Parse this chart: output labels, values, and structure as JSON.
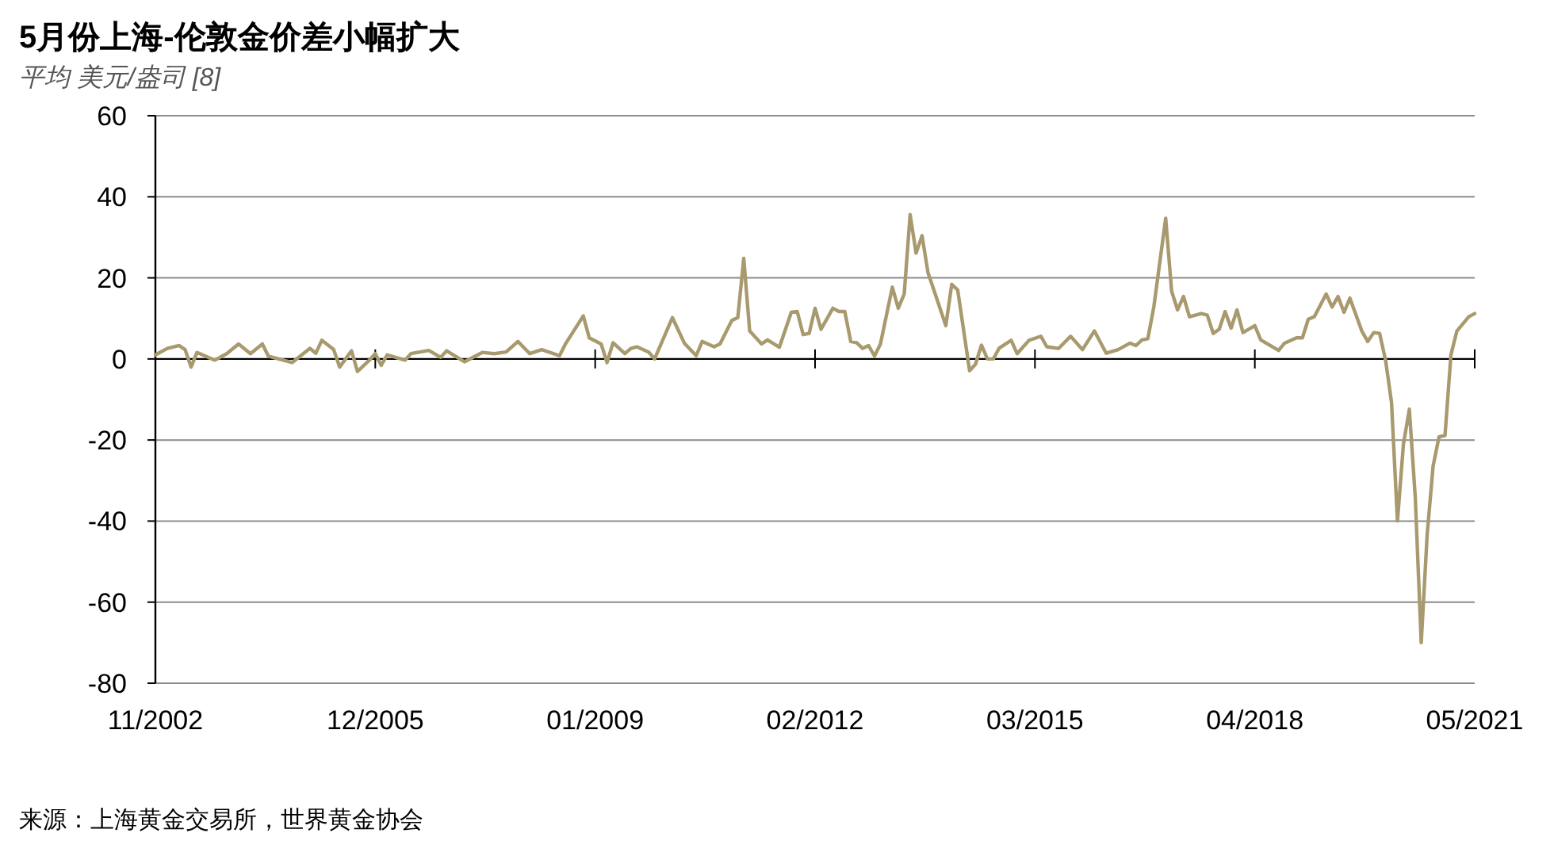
{
  "chart_data": {
    "type": "line",
    "title": "5月份上海-伦敦金价差小幅扩大",
    "subtitle": "平均 美元/盎司 [8]",
    "annotations": [
      "来源：上海黄金交易所，世界黄金协会"
    ],
    "xlim": [
      "2002-11",
      "2021-05"
    ],
    "xticks": [
      {
        "value": "2002-11",
        "label": "11/2002"
      },
      {
        "value": "2005-12",
        "label": "12/2005"
      },
      {
        "value": "2009-01",
        "label": "01/2009"
      },
      {
        "value": "2012-02",
        "label": "02/2012"
      },
      {
        "value": "2015-03",
        "label": "03/2015"
      },
      {
        "value": "2018-04",
        "label": "04/2018"
      },
      {
        "value": "2021-05",
        "label": "05/2021"
      }
    ],
    "ylim": [
      -80,
      60
    ],
    "yticks": [
      -80,
      -60,
      -40,
      -20,
      0,
      20,
      40,
      60
    ],
    "grid": "y",
    "color": "#a89a6e",
    "x": [
      "2002-11",
      "2003-01",
      "2003-03",
      "2003-04",
      "2003-05",
      "2003-06",
      "2003-09",
      "2003-11",
      "2004-01",
      "2004-03",
      "2004-05",
      "2004-06",
      "2004-10",
      "2005-01",
      "2005-02",
      "2005-03",
      "2005-05",
      "2005-06",
      "2005-08",
      "2005-09",
      "2005-11",
      "2005-12",
      "2006-01",
      "2006-02",
      "2006-05",
      "2006-06",
      "2006-09",
      "2006-11",
      "2006-12",
      "2007-03",
      "2007-06",
      "2007-08",
      "2007-10",
      "2007-12",
      "2008-02",
      "2008-04",
      "2008-07",
      "2008-08",
      "2008-11",
      "2008-12",
      "2009-02",
      "2009-03",
      "2009-04",
      "2009-06",
      "2009-07",
      "2009-08",
      "2009-10",
      "2009-11",
      "2010-02",
      "2010-04",
      "2010-06",
      "2010-07",
      "2010-09",
      "2010-10",
      "2010-12",
      "2011-01",
      "2011-02",
      "2011-03",
      "2011-05",
      "2011-06",
      "2011-08",
      "2011-10",
      "2011-11",
      "2011-12",
      "2012-01",
      "2012-02",
      "2012-03",
      "2012-05",
      "2012-06",
      "2012-07",
      "2012-08",
      "2012-09",
      "2012-10",
      "2012-11",
      "2012-12",
      "2013-01",
      "2013-03",
      "2013-04",
      "2013-05",
      "2013-06",
      "2013-07",
      "2013-08",
      "2013-09",
      "2013-10",
      "2013-12",
      "2014-01",
      "2014-02",
      "2014-04",
      "2014-05",
      "2014-06",
      "2014-07",
      "2014-08",
      "2014-09",
      "2014-11",
      "2014-12",
      "2015-02",
      "2015-04",
      "2015-05",
      "2015-07",
      "2015-09",
      "2015-11",
      "2016-01",
      "2016-03",
      "2016-05",
      "2016-07",
      "2016-08",
      "2016-09",
      "2016-10",
      "2016-11",
      "2017-01",
      "2017-02",
      "2017-03",
      "2017-04",
      "2017-05",
      "2017-07",
      "2017-08",
      "2017-09",
      "2017-10",
      "2017-11",
      "2017-12",
      "2018-01",
      "2018-02",
      "2018-04",
      "2018-05",
      "2018-08",
      "2018-09",
      "2018-11",
      "2018-12",
      "2019-01",
      "2019-02",
      "2019-04",
      "2019-05",
      "2019-06",
      "2019-07",
      "2019-08",
      "2019-10",
      "2019-11",
      "2019-12",
      "2020-01",
      "2020-02",
      "2020-03",
      "2020-04",
      "2020-05",
      "2020-06",
      "2020-07",
      "2020-08",
      "2020-09",
      "2020-10",
      "2020-11",
      "2020-12",
      "2021-01",
      "2021-02",
      "2021-04",
      "2021-05"
    ],
    "values": [
      1.0,
      2.6,
      3.3,
      2.3,
      -2,
      1.6,
      -0.3,
      1.3,
      3.7,
      1.3,
      3.7,
      0.7,
      -0.9,
      2.6,
      1.4,
      4.6,
      2.3,
      -2,
      2,
      -3.1,
      -0.3,
      1.3,
      -1.6,
      1,
      -0.3,
      1.3,
      2.1,
      0.4,
      2,
      -0.7,
      1.6,
      1.3,
      1.7,
      4.3,
      1.3,
      2.3,
      0.8,
      3.7,
      10.6,
      5.2,
      3.7,
      -0.9,
      4,
      1.3,
      2.6,
      3,
      1.7,
      0,
      10.2,
      3.9,
      0.8,
      4.3,
      3,
      3.7,
      9.5,
      10.2,
      24.8,
      6.9,
      3.7,
      4.7,
      2.9,
      11.5,
      11.7,
      6,
      6.3,
      12.5,
      7.3,
      12.5,
      11.7,
      11.7,
      4.3,
      4,
      2.6,
      3.3,
      0.7,
      3.7,
      17.7,
      12.5,
      16,
      35.6,
      26.1,
      30.4,
      21.3,
      17,
      8.2,
      18.4,
      17,
      -2.9,
      -1.3,
      3.4,
      0,
      0,
      2.7,
      4.6,
      1.3,
      4.6,
      5.6,
      3,
      2.6,
      5.6,
      2.3,
      6.9,
      1.4,
      2.3,
      3.9,
      3.3,
      4.7,
      5,
      12.8,
      34.7,
      16.7,
      12.1,
      15.4,
      10.4,
      11.2,
      10.8,
      6.3,
      7.3,
      11.7,
      7.6,
      12.1,
      6.5,
      8.2,
      4.7,
      2.1,
      3.9,
      5.2,
      5.2,
      9.8,
      10.4,
      16,
      12.8,
      15.4,
      11.5,
      15,
      6.9,
      4.3,
      6.5,
      6.3,
      -0.3,
      -10.7,
      -40,
      -21.1,
      -12.4,
      -34.2,
      -70,
      -43.3,
      -26.4,
      -19.2,
      -18.9,
      1,
      6.9,
      10.4,
      11.2
    ]
  }
}
